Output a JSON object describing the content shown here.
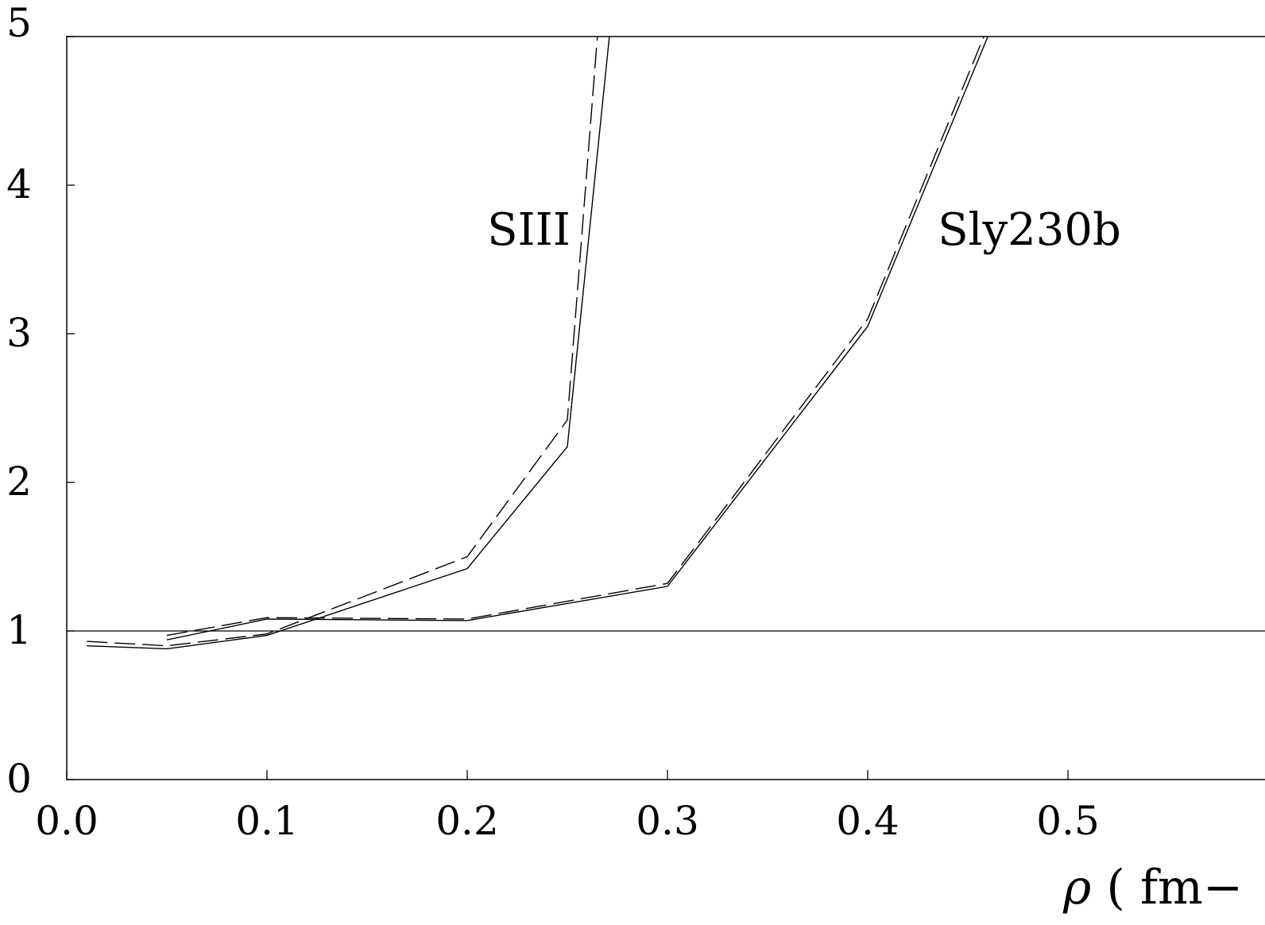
{
  "chart_data": {
    "type": "line",
    "title": "",
    "xlabel": "ρ ( fm−",
    "ylabel": "",
    "xlim": [
      0.0,
      0.6
    ],
    "ylim": [
      0,
      5
    ],
    "x_ticks": [
      "0.0",
      "0.1",
      "0.2",
      "0.3",
      "0.4",
      "0.5"
    ],
    "y_ticks": [
      "0",
      "1",
      "2",
      "3",
      "4",
      "5"
    ],
    "reference_line_y": 1,
    "annotations": [
      {
        "text": "SIII",
        "x": 0.21,
        "y": 3.6
      },
      {
        "text": "Sly230b",
        "x": 0.435,
        "y": 3.6
      }
    ],
    "series": [
      {
        "style": "solid",
        "x": [
          0.01,
          0.05,
          0.1,
          0.2,
          0.25,
          0.271
        ],
        "y": [
          0.9,
          0.88,
          0.97,
          1.42,
          2.24,
          5.0
        ]
      },
      {
        "style": "dashed",
        "x": [
          0.01,
          0.05,
          0.1,
          0.2,
          0.25,
          0.265
        ],
        "y": [
          0.93,
          0.9,
          0.98,
          1.5,
          2.42,
          5.0
        ]
      },
      {
        "style": "solid",
        "x": [
          0.05,
          0.1,
          0.2,
          0.3,
          0.4,
          0.46
        ],
        "y": [
          0.94,
          1.08,
          1.07,
          1.3,
          3.05,
          5.0
        ]
      },
      {
        "style": "dashed",
        "x": [
          0.05,
          0.1,
          0.2,
          0.3,
          0.4,
          0.458
        ],
        "y": [
          0.97,
          1.09,
          1.08,
          1.32,
          3.1,
          5.0
        ]
      }
    ]
  }
}
